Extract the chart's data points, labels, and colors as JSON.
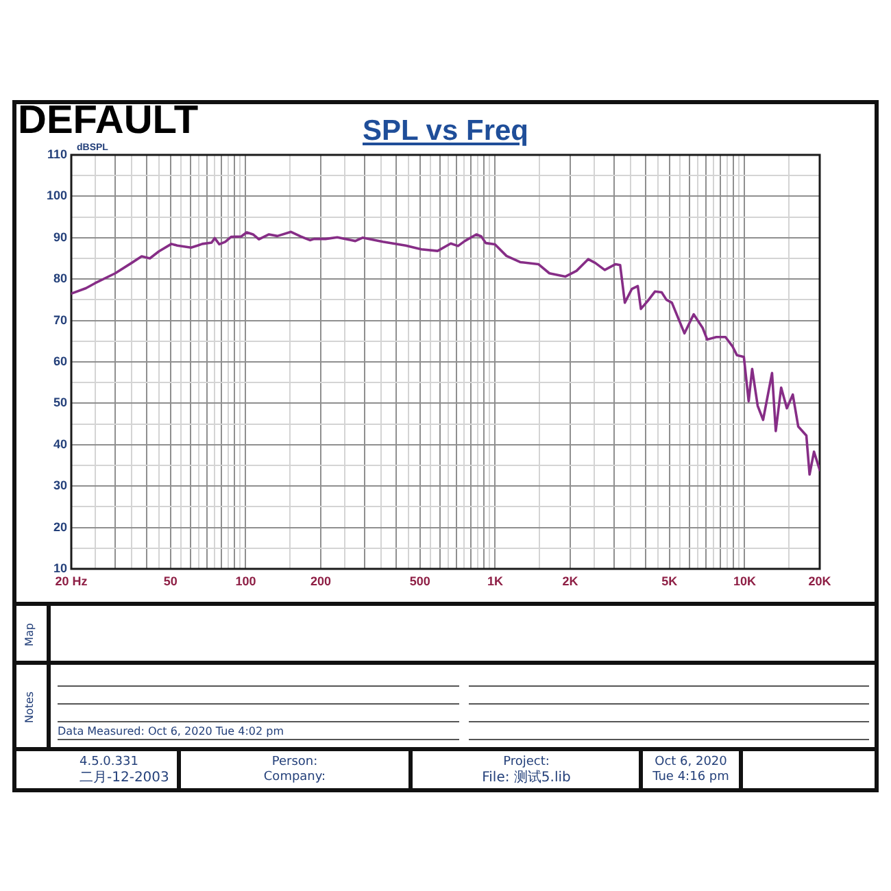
{
  "chart_data": {
    "type": "line",
    "title": "SPL vs Freq",
    "ylabel": "dBSPL",
    "annotations": [
      "DEFAULT",
      "Map",
      "Notes",
      "Data Measured: Oct 6, 2020 Tue 4:02 pm",
      "4.5.0.331",
      "二月-12-2003",
      "Person:",
      "Company:",
      "Project:",
      "File: 测试5.lib",
      "Oct 6, 2020",
      "Tue 4:16 pm"
    ],
    "x": [
      20,
      22.9,
      24.9,
      30,
      34.9,
      38.3,
      41.3,
      44.9,
      50.4,
      53.2,
      60.4,
      64.2,
      67,
      73,
      75.2,
      78.4,
      82.8,
      87.4,
      96,
      101,
      107,
      113,
      124,
      134,
      152,
      166,
      181,
      188,
      209,
      233,
      275,
      294,
      355,
      438,
      506,
      588,
      664,
      710,
      756,
      841,
      880,
      918,
      998,
      1110,
      1260,
      1490,
      1650,
      1910,
      2120,
      2360,
      2520,
      2750,
      3040,
      3170,
      3310,
      3530,
      3730,
      3840,
      4100,
      4370,
      4650,
      4860,
      5110,
      5740,
      6250,
      6790,
      7080,
      7700,
      8380,
      8930,
      9320,
      9930,
      10380,
      10720,
      11280,
      11860,
      12880,
      13330,
      14010,
      14770,
      15600,
      16400,
      17680,
      18210,
      18970,
      20000
    ],
    "series": [
      {
        "color": "#862d86",
        "values": [
          76.5,
          77.8,
          79,
          81.4,
          83.9,
          85.5,
          85,
          86.7,
          88.5,
          88.1,
          87.6,
          88.1,
          88.5,
          88.8,
          89.9,
          88.4,
          89,
          90.2,
          90.3,
          91.3,
          90.8,
          89.6,
          90.8,
          90.4,
          91.4,
          90.3,
          89.4,
          89.7,
          89.7,
          90.1,
          89.2,
          90,
          89,
          88.1,
          87.2,
          86.8,
          88.6,
          88,
          89.2,
          90.8,
          90.3,
          88.7,
          88.4,
          85.6,
          84.1,
          83.6,
          81.4,
          80.6,
          82,
          84.8,
          83.9,
          82.2,
          83.6,
          83.4,
          74.3,
          77.6,
          78.3,
          72.8,
          74.8,
          77,
          76.8,
          75,
          74.3,
          66.9,
          71.5,
          68.2,
          65.4,
          66,
          66,
          63.8,
          61.6,
          61.2,
          50.5,
          58.3,
          49.4,
          46,
          57.3,
          43.3,
          53.8,
          48.8,
          52.1,
          44.4,
          42.2,
          32.8,
          38.3,
          33.9
        ]
      }
    ],
    "xlim": [
      20,
      20000
    ],
    "ylim": [
      10,
      110
    ],
    "xticks": [
      {
        "value": 20,
        "label": "20 Hz"
      },
      {
        "value": 25,
        "label": null
      },
      {
        "value": 30,
        "label": null
      },
      {
        "value": 35,
        "label": null
      },
      {
        "value": 40,
        "label": null
      },
      {
        "value": 45,
        "label": null
      },
      50,
      {
        "value": 55,
        "label": null
      },
      {
        "value": 60,
        "label": null
      },
      {
        "value": 65,
        "label": null
      },
      {
        "value": 70,
        "label": null
      },
      {
        "value": 75,
        "label": null
      },
      {
        "value": 80,
        "label": null
      },
      {
        "value": 85,
        "label": null
      },
      {
        "value": 90,
        "label": null
      },
      {
        "value": 95,
        "label": null
      },
      100,
      {
        "value": 150,
        "label": null
      },
      200,
      {
        "value": 250,
        "label": null
      },
      {
        "value": 300,
        "label": null
      },
      {
        "value": 350,
        "label": null
      },
      {
        "value": 400,
        "label": null
      },
      {
        "value": 450,
        "label": null
      },
      500,
      {
        "value": 550,
        "label": null
      },
      {
        "value": 600,
        "label": null
      },
      {
        "value": 650,
        "label": null
      },
      {
        "value": 700,
        "label": null
      },
      {
        "value": 750,
        "label": null
      },
      {
        "value": 800,
        "label": null
      },
      {
        "value": 850,
        "label": null
      },
      {
        "value": 900,
        "label": null
      },
      {
        "value": 950,
        "label": null
      },
      {
        "value": 1000,
        "label": "1K"
      },
      {
        "value": 1500,
        "label": null
      },
      {
        "value": 2000,
        "label": "2K"
      },
      {
        "value": 2500,
        "label": null
      },
      {
        "value": 3000,
        "label": null
      },
      {
        "value": 3500,
        "label": null
      },
      {
        "value": 4000,
        "label": null
      },
      {
        "value": 4500,
        "label": null
      },
      {
        "value": 5000,
        "label": "5K"
      },
      {
        "value": 5500,
        "label": null
      },
      {
        "value": 6000,
        "label": null
      },
      {
        "value": 6500,
        "label": null
      },
      {
        "value": 7000,
        "label": null
      },
      {
        "value": 7500,
        "label": null
      },
      {
        "value": 8000,
        "label": null
      },
      {
        "value": 8500,
        "label": null
      },
      {
        "value": 9000,
        "label": null
      },
      {
        "value": 9500,
        "label": null
      },
      {
        "value": 10000,
        "label": "10K"
      },
      {
        "value": 15000,
        "label": null
      },
      {
        "value": 20000,
        "label": "20K"
      }
    ],
    "yticks": [
      10,
      {
        "value": 15,
        "label": null
      },
      20,
      {
        "value": 25,
        "label": null
      },
      30,
      {
        "value": 35,
        "label": null
      },
      40,
      {
        "value": 45,
        "label": null
      },
      50,
      {
        "value": 55,
        "label": null
      },
      60,
      {
        "value": 65,
        "label": null
      },
      70,
      {
        "value": 75,
        "label": null
      },
      80,
      {
        "value": 85,
        "label": null
      },
      90,
      {
        "value": 95,
        "label": null
      },
      100,
      {
        "value": 105,
        "label": null
      },
      110
    ],
    "log": "x",
    "grid": true
  }
}
